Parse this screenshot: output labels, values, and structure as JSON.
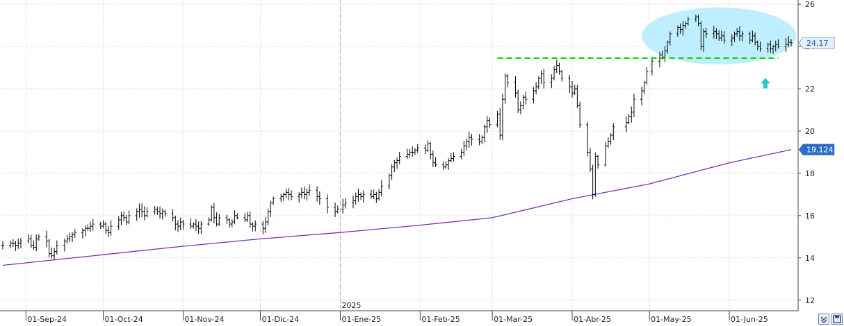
{
  "chart_data": {
    "type": "candlestick",
    "y_axis": {
      "side": "right",
      "ticks": [
        12,
        14,
        16,
        18,
        20,
        22,
        24,
        26
      ],
      "ylim": [
        11.5,
        26.2
      ]
    },
    "x_axis": {
      "date_range": [
        "2024-08-23",
        "2025-06-25"
      ],
      "tick_dates": [
        "2024-09-01",
        "2024-10-01",
        "2024-11-01",
        "2024-12-01",
        "2025-01-01",
        "2025-02-01",
        "2025-03-01",
        "2025-04-01",
        "2025-05-01",
        "2025-06-01"
      ],
      "tick_labels": [
        "01-Sep-24",
        "01-Oct-24",
        "01-Nov-24",
        "01-Dic-24",
        "01-Ene-25",
        "01-Feb-25",
        "01-Mar-25",
        "01-Abr-25",
        "01-May-25",
        "01-Jun-25"
      ],
      "year_divider": {
        "date": "2025-01-01",
        "label": "2025"
      }
    },
    "price_series": {
      "color": "#000000",
      "closes": [
        [
          "2024-08-23",
          14.6
        ],
        [
          "2024-08-26",
          14.7
        ],
        [
          "2024-08-27",
          14.7
        ],
        [
          "2024-08-28",
          14.6
        ],
        [
          "2024-08-29",
          14.7
        ],
        [
          "2024-08-30",
          14.8
        ],
        [
          "2024-09-02",
          14.9
        ],
        [
          "2024-09-03",
          14.6
        ],
        [
          "2024-09-04",
          14.5
        ],
        [
          "2024-09-05",
          14.9
        ],
        [
          "2024-09-06",
          15.0
        ],
        [
          "2024-09-09",
          14.8
        ],
        [
          "2024-09-10",
          14.2
        ],
        [
          "2024-09-11",
          14.1
        ],
        [
          "2024-09-12",
          14.3
        ],
        [
          "2024-09-13",
          14.6
        ],
        [
          "2024-09-16",
          14.8
        ],
        [
          "2024-09-17",
          14.9
        ],
        [
          "2024-09-18",
          15.0
        ],
        [
          "2024-09-19",
          15.1
        ],
        [
          "2024-09-20",
          15.2
        ],
        [
          "2024-09-23",
          15.3
        ],
        [
          "2024-09-24",
          15.4
        ],
        [
          "2024-09-25",
          15.4
        ],
        [
          "2024-09-26",
          15.5
        ],
        [
          "2024-09-27",
          15.6
        ],
        [
          "2024-09-30",
          15.5
        ],
        [
          "2024-10-01",
          15.6
        ],
        [
          "2024-10-02",
          15.3
        ],
        [
          "2024-10-03",
          15.2
        ],
        [
          "2024-10-04",
          15.5
        ],
        [
          "2024-10-07",
          15.8
        ],
        [
          "2024-10-08",
          16.0
        ],
        [
          "2024-10-09",
          15.9
        ],
        [
          "2024-10-10",
          15.7
        ],
        [
          "2024-10-11",
          16.0
        ],
        [
          "2024-10-14",
          16.2
        ],
        [
          "2024-10-15",
          16.3
        ],
        [
          "2024-10-16",
          16.2
        ],
        [
          "2024-10-17",
          16.0
        ],
        [
          "2024-10-18",
          16.2
        ],
        [
          "2024-10-21",
          16.3
        ],
        [
          "2024-10-22",
          16.2
        ],
        [
          "2024-10-23",
          16.1
        ],
        [
          "2024-10-24",
          16.2
        ],
        [
          "2024-10-25",
          16.1
        ],
        [
          "2024-10-28",
          15.9
        ],
        [
          "2024-10-29",
          15.6
        ],
        [
          "2024-10-30",
          15.5
        ],
        [
          "2024-10-31",
          15.7
        ],
        [
          "2024-11-01",
          15.6
        ],
        [
          "2024-11-04",
          15.5
        ],
        [
          "2024-11-05",
          15.6
        ],
        [
          "2024-11-06",
          15.5
        ],
        [
          "2024-11-07",
          15.4
        ],
        [
          "2024-11-08",
          15.6
        ],
        [
          "2024-11-11",
          15.8
        ],
        [
          "2024-11-12",
          16.4
        ],
        [
          "2024-11-13",
          15.9
        ],
        [
          "2024-11-14",
          15.6
        ],
        [
          "2024-11-15",
          15.9
        ],
        [
          "2024-11-18",
          15.8
        ],
        [
          "2024-11-19",
          15.6
        ],
        [
          "2024-11-20",
          15.7
        ],
        [
          "2024-11-21",
          16.0
        ],
        [
          "2024-11-22",
          15.9
        ],
        [
          "2024-11-25",
          15.8
        ],
        [
          "2024-11-26",
          16.0
        ],
        [
          "2024-11-27",
          15.6
        ],
        [
          "2024-11-28",
          15.5
        ],
        [
          "2024-11-29",
          15.6
        ],
        [
          "2024-12-02",
          15.4
        ],
        [
          "2024-12-03",
          15.7
        ],
        [
          "2024-12-04",
          16.2
        ],
        [
          "2024-12-05",
          16.6
        ],
        [
          "2024-12-06",
          16.8
        ],
        [
          "2024-12-09",
          16.9
        ],
        [
          "2024-12-10",
          17.0
        ],
        [
          "2024-12-11",
          17.1
        ],
        [
          "2024-12-12",
          17.0
        ],
        [
          "2024-12-13",
          16.9
        ],
        [
          "2024-12-16",
          17.0
        ],
        [
          "2024-12-17",
          17.1
        ],
        [
          "2024-12-18",
          17.0
        ],
        [
          "2024-12-19",
          17.1
        ],
        [
          "2024-12-20",
          17.2
        ],
        [
          "2024-12-23",
          16.9
        ],
        [
          "2024-12-24",
          16.8
        ],
        [
          "2024-12-27",
          16.4
        ],
        [
          "2024-12-30",
          16.2
        ],
        [
          "2024-12-31",
          16.3
        ],
        [
          "2025-01-02",
          16.5
        ],
        [
          "2025-01-03",
          16.6
        ],
        [
          "2025-01-06",
          16.7
        ],
        [
          "2025-01-07",
          16.9
        ],
        [
          "2025-01-08",
          17.0
        ],
        [
          "2025-01-09",
          16.9
        ],
        [
          "2025-01-10",
          17.0
        ],
        [
          "2025-01-13",
          16.9
        ],
        [
          "2025-01-14",
          17.0
        ],
        [
          "2025-01-15",
          16.8
        ],
        [
          "2025-01-16",
          17.1
        ],
        [
          "2025-01-17",
          17.4
        ],
        [
          "2025-01-20",
          17.9
        ],
        [
          "2025-01-21",
          18.3
        ],
        [
          "2025-01-22",
          18.5
        ],
        [
          "2025-01-23",
          18.6
        ],
        [
          "2025-01-24",
          18.8
        ],
        [
          "2025-01-27",
          18.9
        ],
        [
          "2025-01-28",
          19.0
        ],
        [
          "2025-01-29",
          19.0
        ],
        [
          "2025-01-30",
          19.1
        ],
        [
          "2025-01-31",
          19.2
        ],
        [
          "2025-02-03",
          19.1
        ],
        [
          "2025-02-04",
          19.4
        ],
        [
          "2025-02-05",
          18.9
        ],
        [
          "2025-02-06",
          18.5
        ],
        [
          "2025-02-07",
          18.4
        ],
        [
          "2025-02-10",
          18.3
        ],
        [
          "2025-02-11",
          18.4
        ],
        [
          "2025-02-12",
          18.6
        ],
        [
          "2025-02-13",
          18.7
        ],
        [
          "2025-02-14",
          18.8
        ],
        [
          "2025-02-17",
          19.0
        ],
        [
          "2025-02-18",
          19.3
        ],
        [
          "2025-02-19",
          19.5
        ],
        [
          "2025-02-20",
          19.7
        ],
        [
          "2025-02-21",
          19.6
        ],
        [
          "2025-02-24",
          19.5
        ],
        [
          "2025-02-25",
          19.7
        ],
        [
          "2025-02-26",
          20.2
        ],
        [
          "2025-02-27",
          20.5
        ],
        [
          "2025-02-28",
          20.3
        ],
        [
          "2025-03-03",
          20.8
        ],
        [
          "2025-03-04",
          19.8
        ],
        [
          "2025-03-05",
          21.5
        ],
        [
          "2025-03-06",
          22.6
        ],
        [
          "2025-03-07",
          22.3
        ],
        [
          "2025-03-10",
          21.8
        ],
        [
          "2025-03-11",
          21.0
        ],
        [
          "2025-03-12",
          21.2
        ],
        [
          "2025-03-13",
          21.6
        ],
        [
          "2025-03-14",
          21.5
        ],
        [
          "2025-03-17",
          21.9
        ],
        [
          "2025-03-18",
          22.1
        ],
        [
          "2025-03-19",
          22.5
        ],
        [
          "2025-03-20",
          22.7
        ],
        [
          "2025-03-21",
          22.3
        ],
        [
          "2025-03-24",
          22.5
        ],
        [
          "2025-03-25",
          22.9
        ],
        [
          "2025-03-26",
          23.1
        ],
        [
          "2025-03-27",
          22.8
        ],
        [
          "2025-03-28",
          22.5
        ],
        [
          "2025-03-31",
          22.1
        ],
        [
          "2025-04-01",
          21.8
        ],
        [
          "2025-04-02",
          22.0
        ],
        [
          "2025-04-03",
          21.2
        ],
        [
          "2025-04-04",
          20.3
        ],
        [
          "2025-04-07",
          19.0
        ],
        [
          "2025-04-08",
          18.2
        ],
        [
          "2025-04-09",
          17.0
        ],
        [
          "2025-04-10",
          18.8
        ],
        [
          "2025-04-11",
          18.4
        ],
        [
          "2025-04-14",
          19.3
        ],
        [
          "2025-04-15",
          19.5
        ],
        [
          "2025-04-16",
          19.8
        ],
        [
          "2025-04-17",
          20.2
        ],
        [
          "2025-04-22",
          20.4
        ],
        [
          "2025-04-23",
          20.7
        ],
        [
          "2025-04-24",
          20.9
        ],
        [
          "2025-04-25",
          21.5
        ],
        [
          "2025-04-28",
          21.9
        ],
        [
          "2025-04-29",
          22.3
        ],
        [
          "2025-04-30",
          22.8
        ],
        [
          "2025-05-02",
          23.3
        ],
        [
          "2025-05-05",
          23.6
        ],
        [
          "2025-05-06",
          23.5
        ],
        [
          "2025-05-07",
          23.8
        ],
        [
          "2025-05-08",
          24.2
        ],
        [
          "2025-05-09",
          24.6
        ],
        [
          "2025-05-12",
          24.9
        ],
        [
          "2025-05-13",
          24.8
        ],
        [
          "2025-05-14",
          25.0
        ],
        [
          "2025-05-15",
          25.1
        ],
        [
          "2025-05-16",
          25.3
        ],
        [
          "2025-05-19",
          25.4
        ],
        [
          "2025-05-20",
          25.1
        ],
        [
          "2025-05-21",
          24.0
        ],
        [
          "2025-05-22",
          24.7
        ],
        [
          "2025-05-23",
          24.6
        ],
        [
          "2025-05-26",
          24.7
        ],
        [
          "2025-05-27",
          24.6
        ],
        [
          "2025-05-28",
          24.4
        ],
        [
          "2025-05-29",
          24.5
        ],
        [
          "2025-05-30",
          24.3
        ],
        [
          "2025-06-02",
          24.4
        ],
        [
          "2025-06-03",
          24.6
        ],
        [
          "2025-06-04",
          24.7
        ],
        [
          "2025-06-05",
          24.5
        ],
        [
          "2025-06-06",
          24.6
        ],
        [
          "2025-06-09",
          24.3
        ],
        [
          "2025-06-10",
          24.5
        ],
        [
          "2025-06-11",
          24.2
        ],
        [
          "2025-06-12",
          24.0
        ],
        [
          "2025-06-13",
          23.9
        ],
        [
          "2025-06-16",
          24.1
        ],
        [
          "2025-06-17",
          23.9
        ],
        [
          "2025-06-18",
          24.0
        ],
        [
          "2025-06-19",
          24.1
        ],
        [
          "2025-06-20",
          24.0
        ],
        [
          "2025-06-23",
          24.1
        ],
        [
          "2025-06-24",
          24.2
        ],
        [
          "2025-06-25",
          24.17
        ]
      ]
    },
    "moving_average": {
      "color": "#7b2fb3",
      "points": [
        [
          "2024-08-23",
          13.65
        ],
        [
          "2024-10-01",
          14.15
        ],
        [
          "2024-11-01",
          14.55
        ],
        [
          "2024-12-01",
          14.9
        ],
        [
          "2025-01-01",
          15.2
        ],
        [
          "2025-02-01",
          15.55
        ],
        [
          "2025-03-01",
          15.9
        ],
        [
          "2025-04-01",
          16.8
        ],
        [
          "2025-05-01",
          17.5
        ],
        [
          "2025-06-01",
          18.5
        ],
        [
          "2025-06-25",
          19.12
        ]
      ]
    },
    "annotations": {
      "resistance_line": {
        "value": 23.45,
        "from": "2025-03-03",
        "to": "2025-06-20",
        "color": "#22cc22",
        "style": "dashed"
      },
      "highlight_ellipse": {
        "center_date": "2025-05-28",
        "center_value": 24.5,
        "date_halfwidth_days": 30,
        "value_halfwidth": 1.35,
        "color": "#bfefff"
      },
      "up_arrow": {
        "date": "2025-06-15",
        "value": 22.25,
        "color": "#2ec4c4"
      }
    },
    "value_badges": [
      {
        "label": "24,17",
        "value": 24.17,
        "background": "#e4f0ff",
        "text_color": "#1e5aa8"
      },
      {
        "label": "19,124",
        "value": 19.124,
        "background": "#2b6cc4",
        "text_color": "#ffffff"
      }
    ],
    "grid": true
  },
  "ui": {
    "tool_icons": [
      "zoom-icon",
      "save-icon"
    ]
  }
}
